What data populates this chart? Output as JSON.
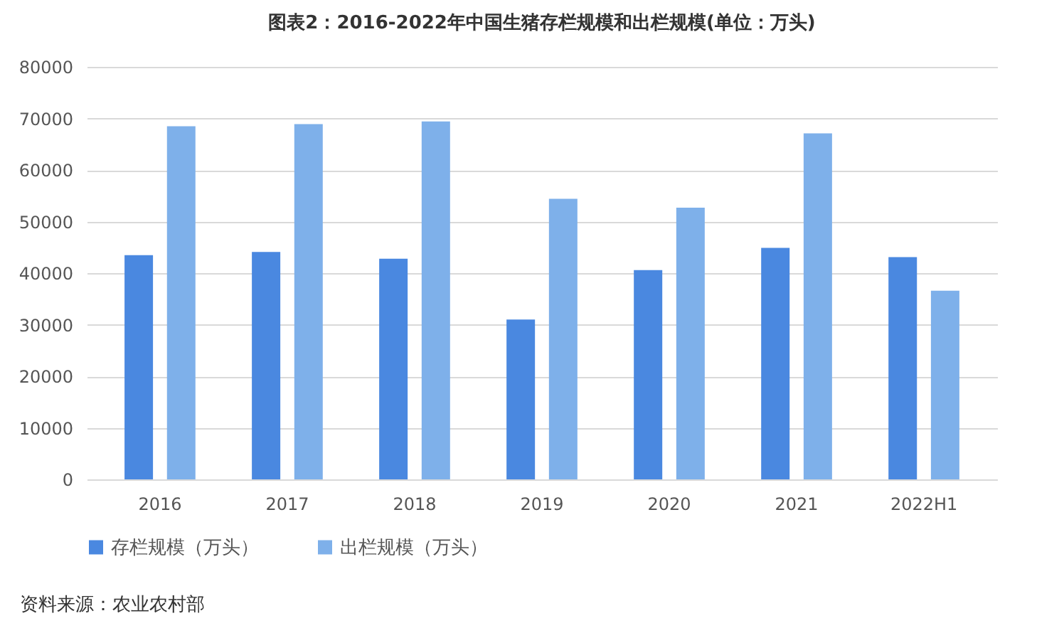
{
  "chart_data": {
    "type": "bar",
    "title": "图表2：2016-2022年中国生猪存栏规模和出栏规模(单位：万头)",
    "categories": [
      "2016",
      "2017",
      "2018",
      "2019",
      "2020",
      "2021",
      "2022H1"
    ],
    "series": [
      {
        "name": "存栏规模（万头）",
        "color": "#4a88e0",
        "values": [
          43500,
          44100,
          42800,
          31000,
          40600,
          44900,
          43100
        ]
      },
      {
        "name": "出栏规模（万头）",
        "color": "#7eb0ea",
        "values": [
          68500,
          68900,
          69400,
          54400,
          52700,
          67100,
          36600
        ]
      }
    ],
    "ylim": [
      0,
      80000
    ],
    "yticks": [
      0,
      10000,
      20000,
      30000,
      40000,
      50000,
      60000,
      70000,
      80000
    ],
    "grid": "y",
    "legend": "bottom",
    "annotations": [
      "资料来源：农业农村部"
    ]
  }
}
